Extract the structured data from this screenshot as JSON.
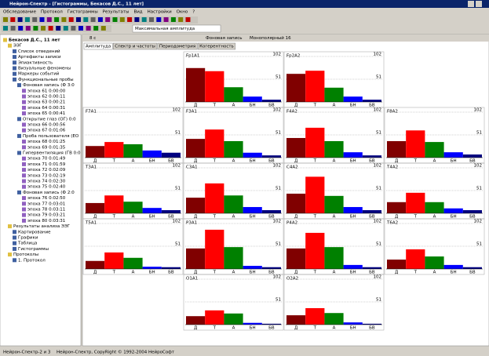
{
  "window": {
    "title": "Нейрон-Спектр - [Гистограммы, Бекасов Д.С., 11 лет]"
  },
  "menu": [
    "Обследование",
    "Протокол",
    "Гистограммы",
    "Результаты",
    "Вид",
    "Настройки",
    "Окно",
    "?"
  ],
  "toolbar": {
    "dropdown": "Максимальная амплитуда"
  },
  "tree": {
    "items": [
      "Бекасов Д.С., 11 лет",
      "ЭЭГ",
      "Список отведений",
      "Артефакты записи",
      "Эпиактивность",
      "Визуальные феномены",
      "Маркеры событий",
      "Функциональные пробы",
      "Фоновая запись (Ф 3:0",
      "эпоха 61 0:00:00",
      "эпоха 62 0:00:11",
      "эпоха 63 0:00:21",
      "эпоха 64 0:00:31",
      "эпоха 65 0:00:41",
      "Открытие глаз (ОГ) 0:0",
      "эпоха 66 0:00:56",
      "эпоха 67 0:01:06",
      "Проба пользователя (ЕО",
      "эпоха 68 0:01:25",
      "эпоха 69 0:01:35",
      "Гипервентиляция (ГВ 0:0",
      "эпоха 70 0:01:49",
      "эпоха 71 0:01:59",
      "эпоха 72 0:02:09",
      "эпоха 73 0:02:19",
      "эпоха 74 0:02:30",
      "эпоха 75 0:02:40",
      "Фоновая запись (Ф 2:0",
      "эпоха 76 0:02:50",
      "эпоха 77 0:03:01",
      "эпоха 78 0:03:11",
      "эпоха 79 0:03:21",
      "эпоха 80 0:03:31",
      "Результаты анализа ЭЭГ",
      "Картирование",
      "Графики",
      "Таблица",
      "Гистограммы",
      "Протоколы",
      "1. Протокол"
    ]
  },
  "panel": {
    "header": [
      "8 с",
      "Фоновая запись",
      "Монополярный 16"
    ],
    "tabs": [
      "Амплитуда",
      "Спектр и частоты",
      "Периодометрия",
      "Когерентность"
    ]
  },
  "histograms": {
    "categories": [
      "Д",
      "Т",
      "А",
      "БН",
      "БВ"
    ],
    "colors": [
      "#800000",
      "#ff0000",
      "#008000",
      "#0000ff",
      "#000080"
    ],
    "ylim": [
      0,
      102
    ],
    "yticks": [
      51,
      102
    ],
    "charts": [
      {
        "label": "Fp1A1",
        "values": [
          76,
          69,
          33,
          12,
          5
        ]
      },
      {
        "label": "Fp2A2",
        "values": [
          63,
          70,
          32,
          12,
          5
        ]
      },
      {
        "label": "F7A1",
        "values": [
          26,
          35,
          30,
          16,
          11
        ]
      },
      {
        "label": "F3A1",
        "values": [
          42,
          63,
          37,
          11,
          5
        ]
      },
      {
        "label": "F4A2",
        "values": [
          44,
          67,
          37,
          12,
          5
        ]
      },
      {
        "label": "F8A2",
        "values": [
          37,
          61,
          35,
          12,
          7
        ]
      },
      {
        "label": "T3A1",
        "values": [
          23,
          40,
          26,
          12,
          7
        ]
      },
      {
        "label": "C3A1",
        "values": [
          35,
          67,
          40,
          14,
          7
        ]
      },
      {
        "label": "C4A2",
        "values": [
          44,
          82,
          39,
          14,
          7
        ]
      },
      {
        "label": "T4A2",
        "values": [
          25,
          46,
          25,
          11,
          7
        ]
      },
      {
        "label": "T5A1",
        "values": [
          18,
          37,
          25,
          5,
          4
        ]
      },
      {
        "label": "P3A1",
        "values": [
          46,
          88,
          49,
          7,
          4
        ]
      },
      {
        "label": "P4A2",
        "values": [
          46,
          81,
          49,
          9,
          4
        ]
      },
      {
        "label": "T6A2",
        "values": [
          21,
          44,
          28,
          9,
          4
        ]
      },
      {
        "label": "O1A1",
        "values": [
          19,
          32,
          25,
          4,
          2
        ]
      },
      {
        "label": "O2A2",
        "values": [
          21,
          37,
          26,
          5,
          2
        ]
      }
    ]
  },
  "status": [
    "Нейрон-Спектр-2 и 3",
    "Нейрон-Спектр, CopyRight © 1992-2004 НейроСофт"
  ]
}
